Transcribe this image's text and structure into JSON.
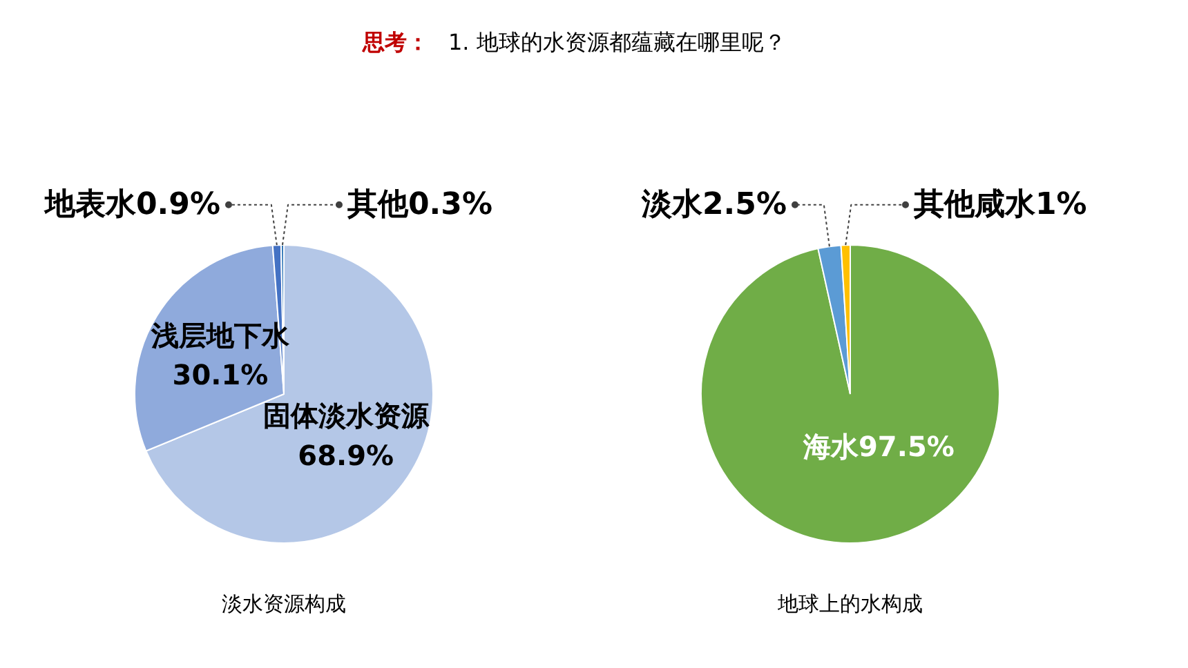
{
  "chart_data": [
    {
      "type": "pie",
      "title": "淡水资源构成",
      "annotations": [
        "思考：",
        "1. 地球的水资源都蕴藏在哪里呢？"
      ],
      "categories": [
        "固体淡水资源",
        "浅层地下水",
        "地表水",
        "其他"
      ],
      "values": [
        68.9,
        30.1,
        0.9,
        0.3
      ],
      "value_labels": [
        "68.9%",
        "30.1%",
        "0.9%",
        "0.3%"
      ],
      "colors": [
        "#b4c7e7",
        "#8faadc",
        "#4472c4",
        "#2e75b6"
      ]
    },
    {
      "type": "pie",
      "title": "地球上的水构成",
      "categories": [
        "海水",
        "淡水",
        "其他咸水"
      ],
      "values": [
        97.5,
        2.5,
        1
      ],
      "value_labels": [
        "97.5%",
        "2.5%",
        "1%"
      ],
      "colors": [
        "#70ad47",
        "#5b9bd5",
        "#ffc000"
      ]
    }
  ]
}
